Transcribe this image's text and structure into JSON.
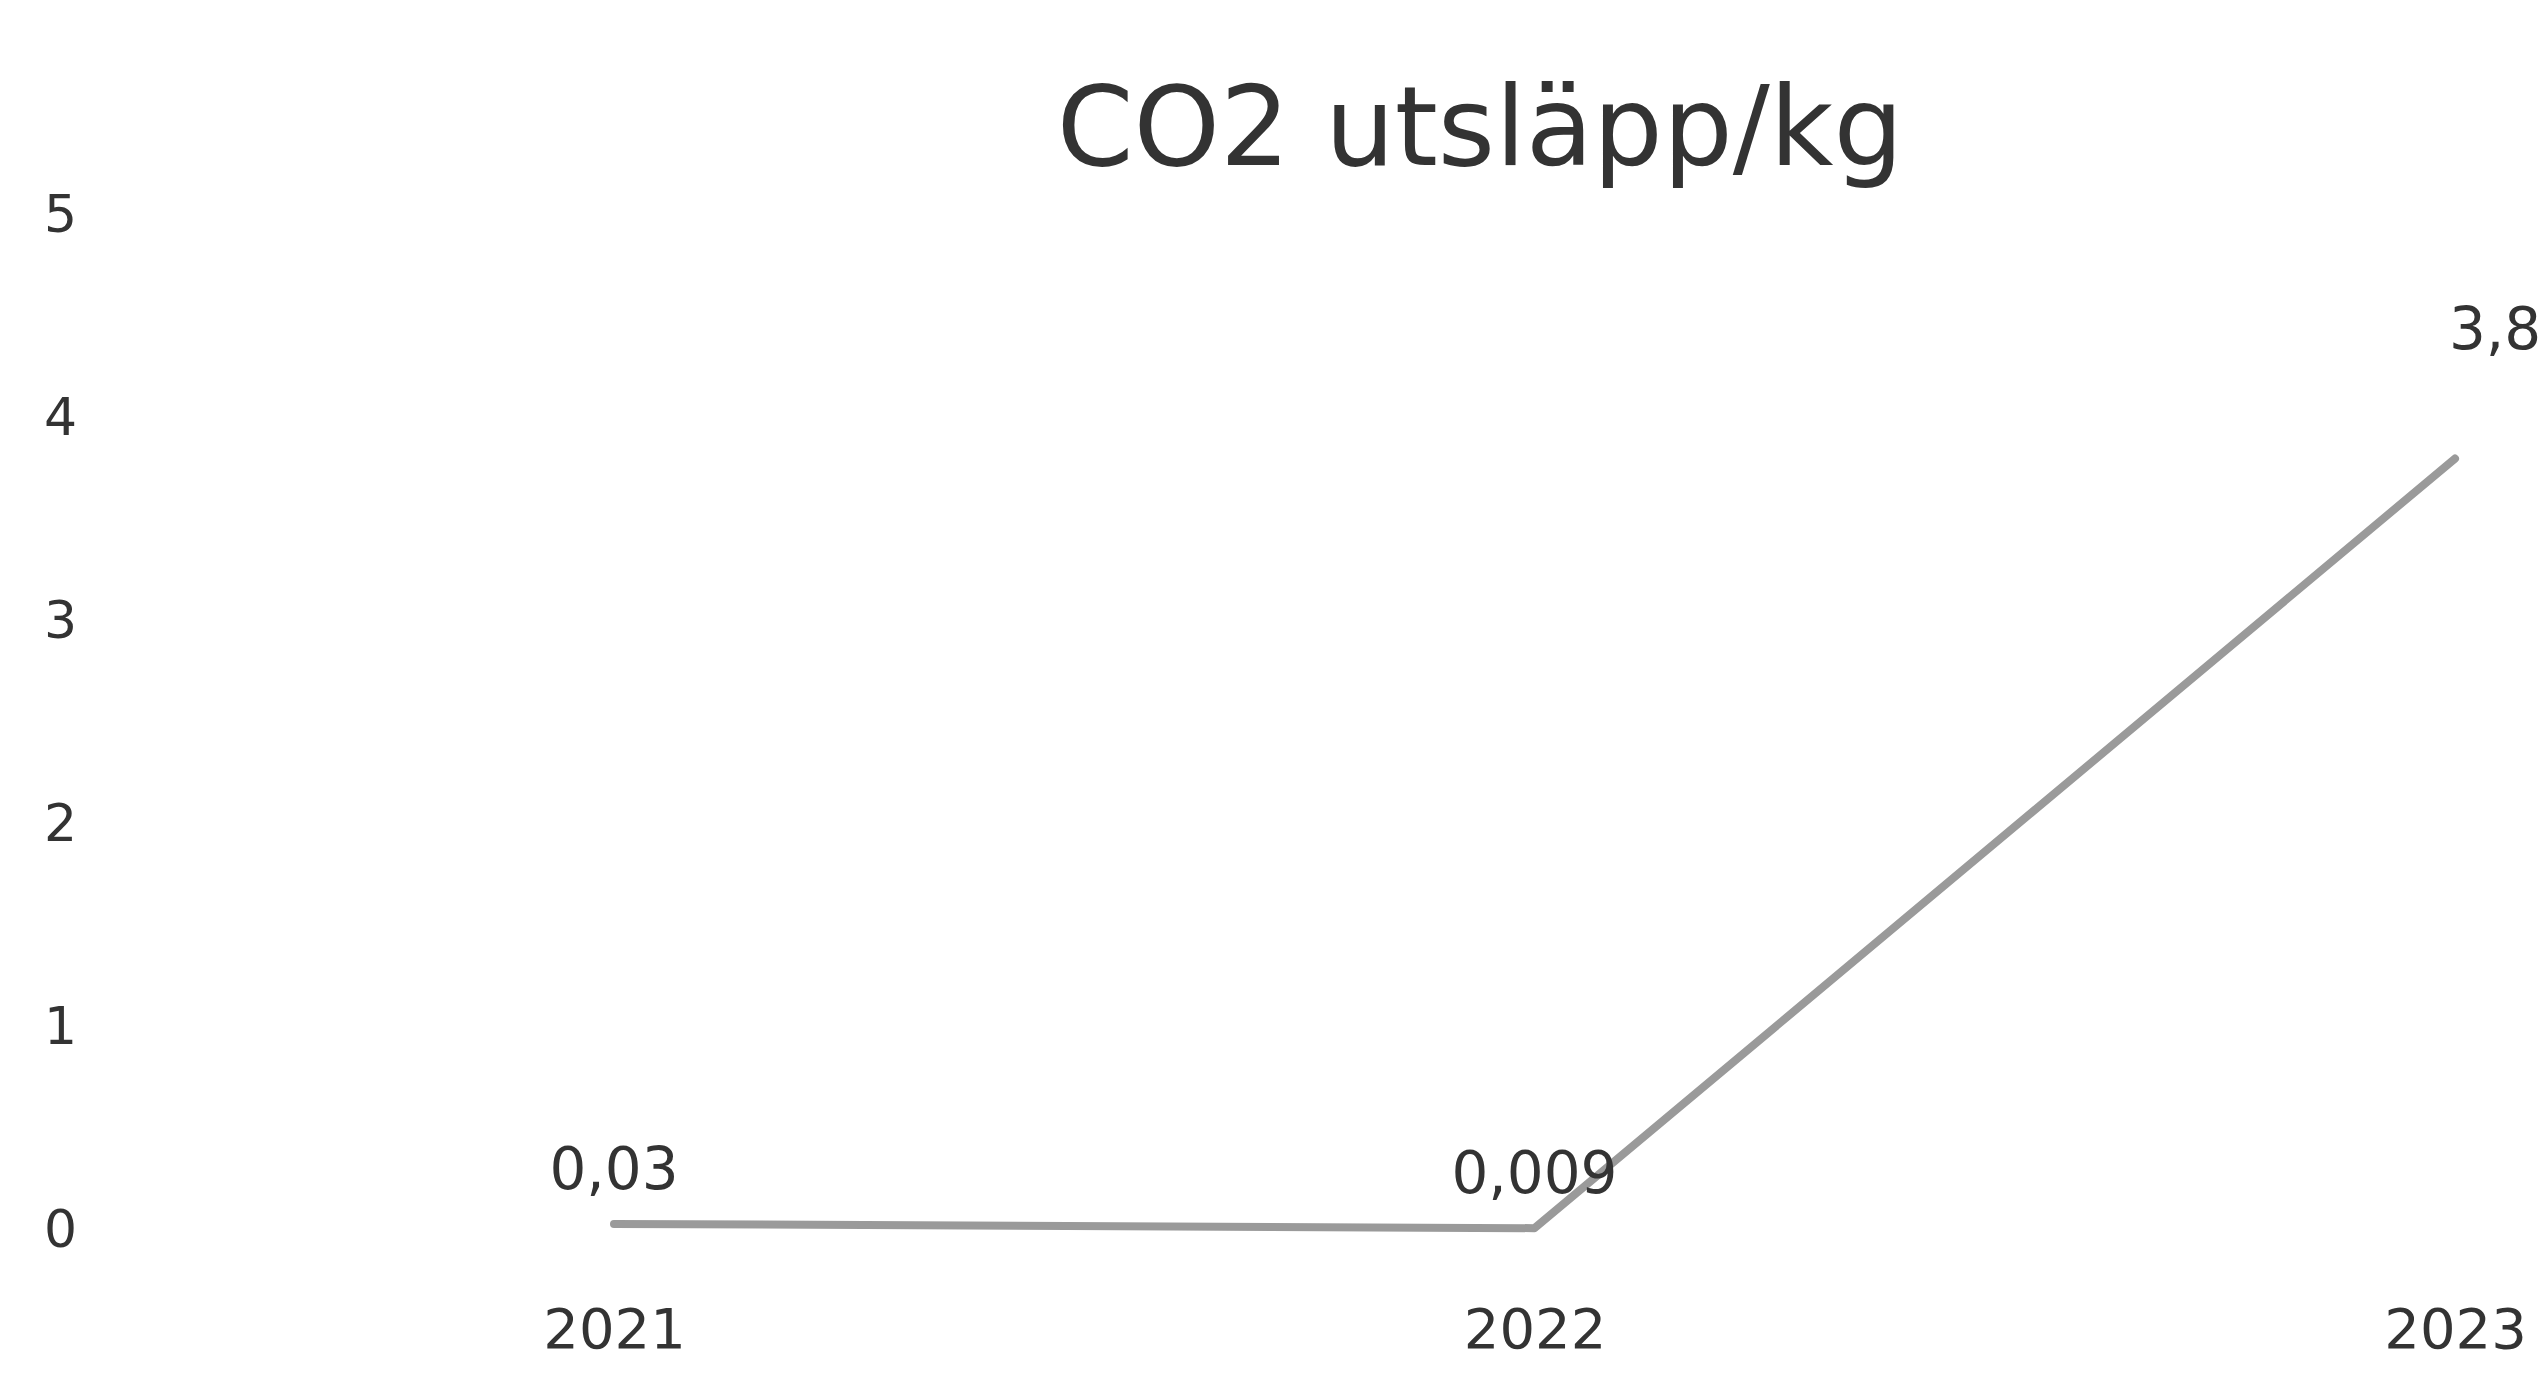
{
  "chart_data": {
    "type": "line",
    "title": "CO2 utsläpp/kg",
    "categories": [
      "2021",
      "2022",
      "2023"
    ],
    "series": [
      {
        "color": "#9a9a9a",
        "values": [
          0.03,
          0.009,
          3.8
        ],
        "value_labels": [
          "0,03",
          "0,009",
          "3,8"
        ]
      }
    ],
    "ylim": [
      0,
      5
    ],
    "yticks": [
      0,
      1,
      2,
      3,
      4,
      5
    ],
    "grid": false,
    "marker": "none",
    "line_style": "solid"
  }
}
